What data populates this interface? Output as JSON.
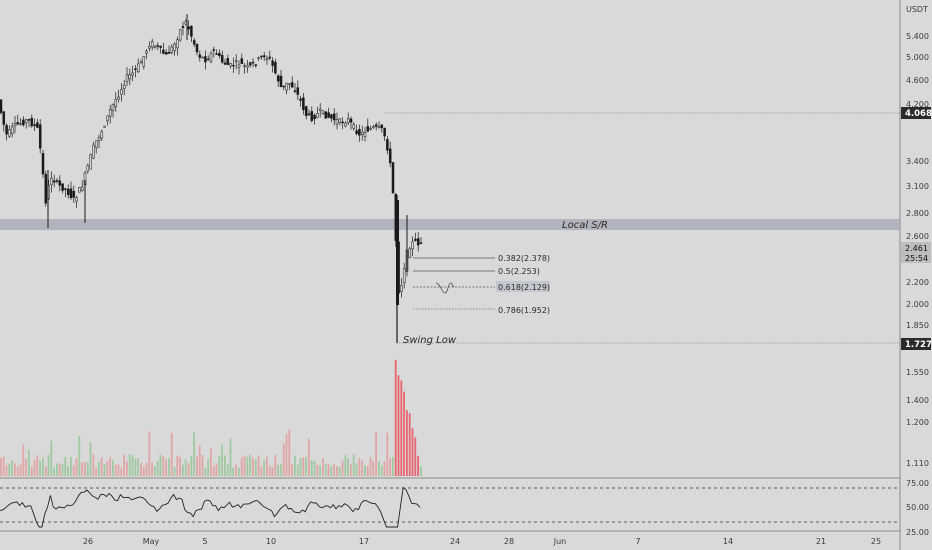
{
  "chart_data": {
    "type": "candlestick",
    "quote_unit": "USDT",
    "price_axis_ticks": [
      "5.400",
      "5.000",
      "4.600",
      "4.200",
      "3.400",
      "3.100",
      "2.800",
      "2.600",
      "2.200",
      "2.000",
      "1.850"
    ],
    "volume_axis_ticks": [
      "1.550",
      "1.400",
      "1.200",
      "1.110"
    ],
    "rsi_axis_ticks": [
      "75.00",
      "50.00",
      "25.00"
    ],
    "time_axis_labels": [
      "26",
      "May",
      "5",
      "10",
      "17",
      "24",
      "28",
      "Jun",
      "7",
      "14",
      "21",
      "25"
    ],
    "price_markers": [
      {
        "label": "4.068",
        "value": 4.068
      },
      {
        "label": "2.461",
        "value": 2.461
      },
      {
        "label": "25:54",
        "value": 2.41
      },
      {
        "label": "1.727",
        "value": 1.727
      }
    ],
    "annotations": {
      "support_resistance": "Local S/R",
      "swing_low": "Swing Low"
    },
    "fib_levels": [
      {
        "label": "0.382(2.378)",
        "value": 2.378
      },
      {
        "label": "0.5(2.253)",
        "value": 2.253
      },
      {
        "label": "0.618(2.129)",
        "value": 2.129
      },
      {
        "label": "0.786(1.952)",
        "value": 1.952
      }
    ],
    "price_range": [
      1.727,
      5.8
    ],
    "colors": {
      "background": "#d9d9d9",
      "candle": "#1a1a1a",
      "zone": "#a9adb6",
      "volume_up": "#9fc99f",
      "volume_down": "#e0a6a6",
      "volume_highlight": "#e8646f",
      "rsi_line": "#222222"
    }
  }
}
